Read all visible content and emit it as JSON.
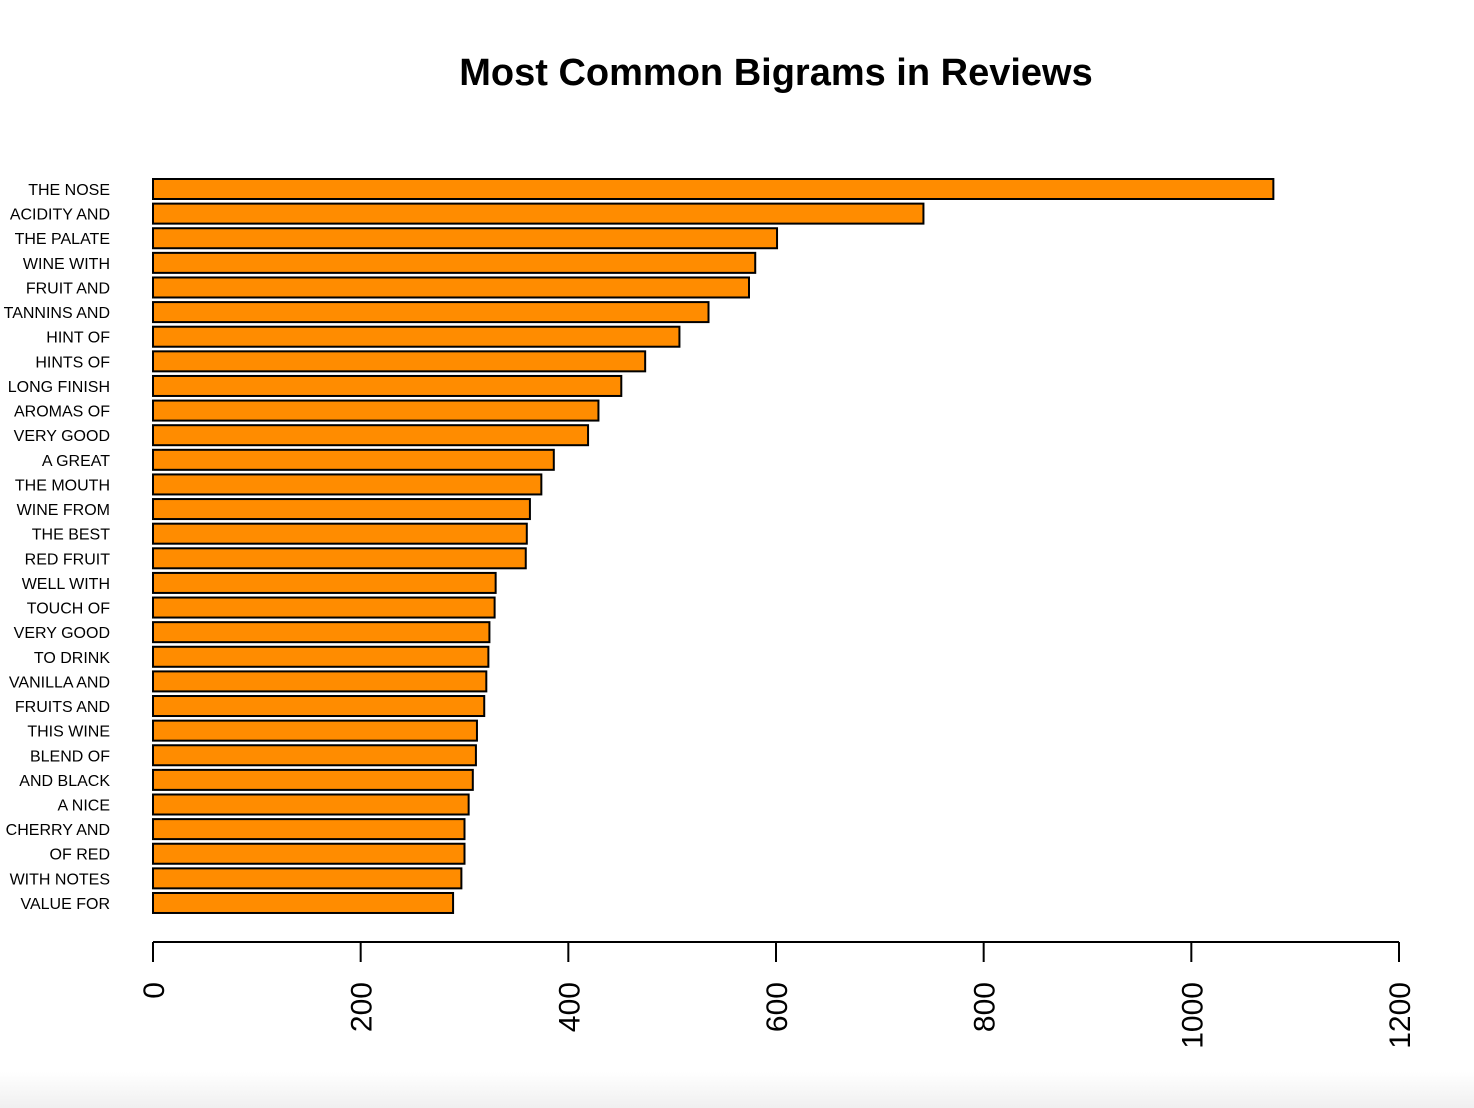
{
  "chart_data": {
    "type": "bar",
    "orientation": "horizontal",
    "title": "Most Common Bigrams in Reviews",
    "xlabel": "",
    "ylabel": "",
    "xlim": [
      0,
      1200
    ],
    "x_ticks": [
      0,
      200,
      400,
      600,
      800,
      1000,
      1200
    ],
    "grid": false,
    "bar_color": "#FF8C00",
    "bar_border_color": "#000000",
    "categories": [
      "THE NOSE",
      "ACIDITY AND",
      "THE PALATE",
      "WINE WITH",
      "FRUIT AND",
      "TANNINS AND",
      "HINT OF",
      "HINTS OF",
      "LONG FINISH",
      "AROMAS OF",
      "VERY GOOD",
      "A GREAT",
      "THE MOUTH",
      "WINE FROM",
      "THE BEST",
      "RED FRUIT",
      "WELL WITH",
      "TOUCH OF",
      "VERY GOOD",
      "TO DRINK",
      "VANILLA AND",
      "FRUITS AND",
      "THIS WINE",
      "BLEND OF",
      "AND BLACK",
      "A NICE",
      "CHERRY AND",
      "OF RED",
      "WITH NOTES",
      "VALUE FOR"
    ],
    "values": [
      1079,
      742,
      601,
      580,
      574,
      535,
      507,
      474,
      451,
      429,
      419,
      386,
      374,
      363,
      360,
      359,
      330,
      329,
      324,
      323,
      321,
      319,
      312,
      311,
      308,
      304,
      300,
      300,
      297,
      289
    ]
  }
}
